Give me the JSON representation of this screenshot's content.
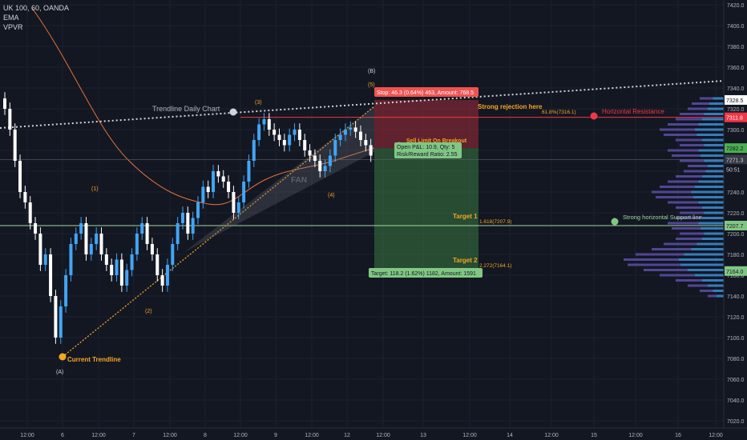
{
  "legend": {
    "symbol_line": "UK 100, 60, OANDA",
    "indicator_1": "EMA",
    "indicator_2": "VPVR"
  },
  "x_axis_labels": [
    "12:00",
    "6",
    "12:00",
    "7",
    "12:00",
    "8",
    "12:00",
    "9",
    "12:00",
    "12",
    "12:00",
    "13",
    "12:00",
    "14",
    "12:00",
    "15",
    "12:00",
    "16",
    "12:00",
    "20"
  ],
  "y_axis_ticks": [
    "7420.0",
    "7400.0",
    "7380.0",
    "7360.0",
    "7340.0",
    "7320.0",
    "7300.0",
    "7280.0",
    "7260.0",
    "7240.0",
    "7220.0",
    "7200.0",
    "7180.0",
    "7160.0",
    "7140.0",
    "7120.0",
    "7100.0",
    "7080.0",
    "7060.0",
    "7040.0",
    "7020.0"
  ],
  "price_tags": [
    {
      "text": "7328.5",
      "color": "#ffffff",
      "bg": "#ffffff",
      "fg": "#131722"
    },
    {
      "text": "7311.8",
      "color": "#f23645",
      "bg": "#f23645",
      "fg": "#ffffff"
    },
    {
      "text": "7282.2",
      "color": "#4caf50",
      "bg": "#4caf50",
      "fg": "#131722"
    },
    {
      "text": "7271.3",
      "color": "#2a2e39",
      "bg": "#363a45",
      "fg": "#d1d4dc"
    },
    {
      "text": "50:51",
      "color": "#2a2e39",
      "bg": "#131722",
      "fg": "#d1d4dc"
    },
    {
      "text": "7207.7",
      "color": "#4caf50",
      "bg": "#81c784",
      "fg": "#131722"
    },
    {
      "text": "7164.0",
      "color": "#4caf50",
      "bg": "#81c784",
      "fg": "#131722"
    }
  ],
  "annotations": {
    "trendline_daily": "Trendline Daily Chart",
    "current_trendline": "Current Trendline",
    "strong_rejection": "Strong rejection here",
    "horizontal_resistance": "Horizontal Resistance",
    "fib_618": "61.8%(7316.1)",
    "target1": "Target 1",
    "target1_fib": "1.618(7207.9)",
    "target2": "Target 2",
    "target2_fib": "2.272(7164.1)",
    "strong_support": "Strong horizontal Support line",
    "fan": "FAN",
    "sell_limit": "Sell Limit On Breakout",
    "wave_1": "(1)",
    "wave_2": "(2)",
    "wave_3": "(3)",
    "wave_4": "(4)",
    "wave_5": "(5)",
    "wave_A": "(A)",
    "wave_B": "(B)"
  },
  "position": {
    "stop_label": "Stop: 46.3 (0.64%) 463, Amount: 768.5",
    "open_pnl": "Open P&L: 10.9, Qty: 5",
    "risk_reward": "Risk/Reward Ratio: 2.55",
    "target_label": "Target: 118.2 (1.62%) 1182, Amount: 1591"
  },
  "colors": {
    "background": "#131722",
    "bull_candle": "#42a5f5",
    "bear_candle": "#ffffff",
    "ema": "#e0723c",
    "stop_zone": "rgba(242,54,69,0.35)",
    "target_zone": "rgba(76,175,80,0.35)",
    "resistance": "#f23645",
    "support": "#a5d6a7",
    "annotation_text": "#f5a623"
  }
}
